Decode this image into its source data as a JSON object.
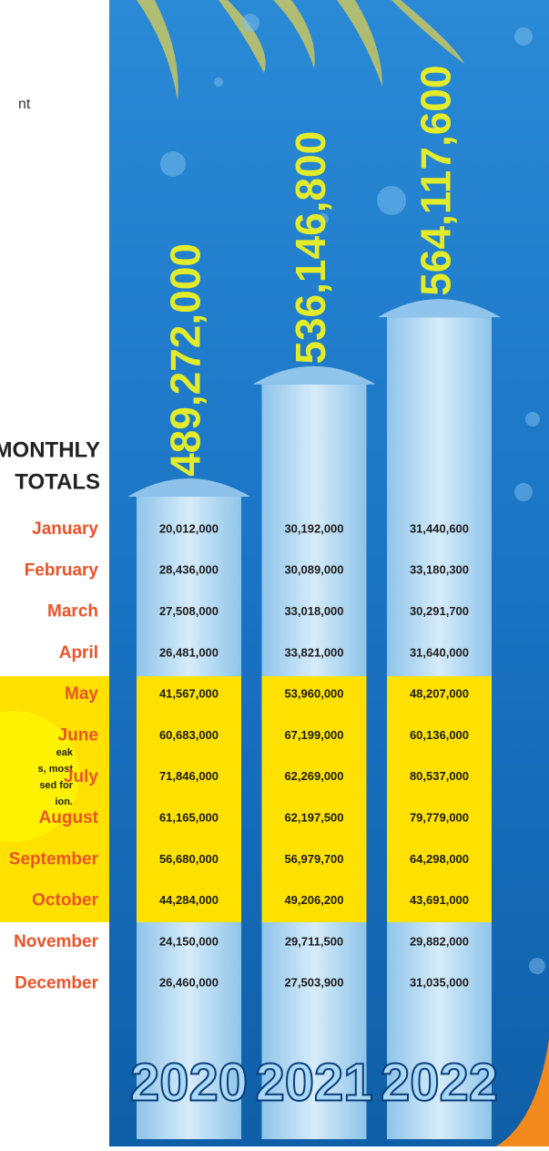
{
  "labels": {
    "top_fragment": "nt",
    "heading": [
      "MONTHLY",
      "TOTALS"
    ],
    "note": [
      "eak",
      "s, most",
      "sed for",
      "ion."
    ]
  },
  "months": [
    "January",
    "February",
    "March",
    "April",
    "May",
    "June",
    "July",
    "August",
    "September",
    "October",
    "November",
    "December"
  ],
  "years": [
    {
      "year": "2020",
      "total": {
        "value": 489272000,
        "label": "489,272,000"
      },
      "monthly": [
        "20,012,000",
        "28,436,000",
        "27,508,000",
        "26,481,000",
        "41,567,000",
        "60,683,000",
        "71,846,000",
        "61,165,000",
        "56,680,000",
        "44,284,000",
        "24,150,000",
        "26,460,000"
      ]
    },
    {
      "year": "2021",
      "total": {
        "value": 536146800,
        "label": "536,146,800"
      },
      "monthly": [
        "30,192,000",
        "30,089,000",
        "33,018,000",
        "33,821,000",
        "53,960,000",
        "67,199,000",
        "62,269,000",
        "62,197,500",
        "56,979,700",
        "49,206,200",
        "29,711,500",
        "27,503,900"
      ]
    },
    {
      "year": "2022",
      "total": {
        "value": 564117600,
        "label": "564,117,600"
      },
      "monthly": [
        "31,440,600",
        "33,180,300",
        "30,291,700",
        "31,640,000",
        "48,207,000",
        "60,136,000",
        "80,537,000",
        "79,779,000",
        "64,298,000",
        "43,691,000",
        "29,882,000",
        "31,035,000"
      ]
    }
  ]
}
